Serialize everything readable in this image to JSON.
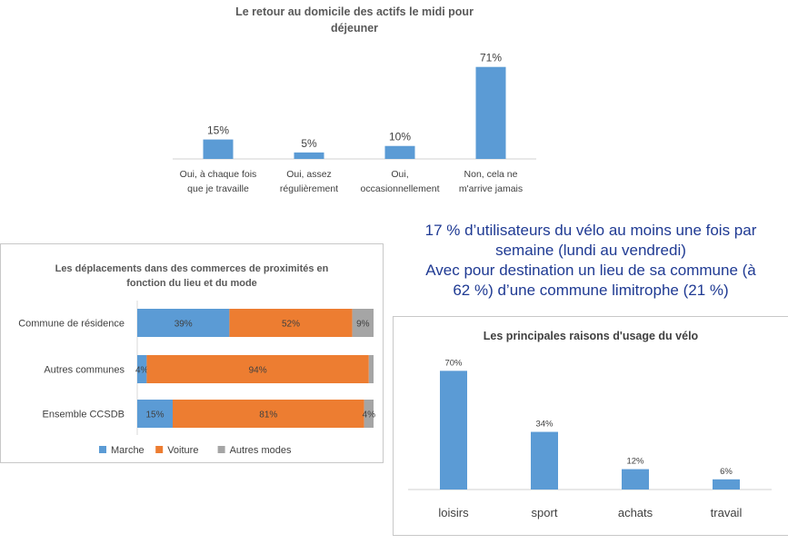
{
  "note": {
    "line1": "17 % d’utilisateurs du vélo au moins une fois par",
    "line2": "semaine (lundi au vendredi)",
    "line3": "Avec pour destination un lieu de sa commune (à",
    "line4": "62 %) d’une commune limitrophe (21 %)"
  },
  "colors": {
    "blue": "#5b9bd5",
    "orange": "#ed7d31",
    "gray": "#a5a5a5",
    "note_text": "#1f3a93"
  },
  "chart_data": [
    {
      "type": "bar",
      "title": "Le retour au domicile des actifs le midi pour déjeuner",
      "title_lines": [
        "Le retour au domicile des actifs le midi pour",
        "déjeuner"
      ],
      "categories": [
        "Oui, à chaque fois que je travaille",
        "Oui, assez régulièrement",
        "Oui, occasionnellement",
        "Non, cela ne m'arrive jamais"
      ],
      "category_lines": [
        [
          "Oui, à chaque fois",
          "que je travaille"
        ],
        [
          "Oui, assez",
          "régulièrement"
        ],
        [
          "Oui,",
          "occasionnellement"
        ],
        [
          "Non, cela ne",
          "m'arrive jamais"
        ]
      ],
      "values": [
        15,
        5,
        10,
        71
      ],
      "labels": [
        "15%",
        "5%",
        "10%",
        "71%"
      ],
      "ylim": [
        0,
        75
      ],
      "xlabel": "",
      "ylabel": ""
    },
    {
      "type": "bar",
      "orientation": "horizontal-stacked",
      "title": "Les déplacements dans des commerces de proximités en fonction du lieu et du mode",
      "title_lines": [
        "Les déplacements dans des commerces de proximités en",
        "fonction du lieu et du mode"
      ],
      "categories": [
        "Commune de résidence",
        "Autres communes",
        "Ensemble CCSDB"
      ],
      "series": [
        {
          "name": "Marche",
          "values": [
            39,
            4,
            15
          ],
          "labels": [
            "39%",
            "4%",
            "15%"
          ]
        },
        {
          "name": "Voiture",
          "values": [
            52,
            94,
            81
          ],
          "labels": [
            "52%",
            "94%",
            "81%"
          ]
        },
        {
          "name": "Autres modes",
          "values": [
            9,
            2,
            4
          ],
          "labels": [
            "9%",
            "",
            "4%"
          ]
        }
      ],
      "xlim": [
        0,
        100
      ],
      "legend": "bottom"
    },
    {
      "type": "bar",
      "title": "Les principales raisons d'usage du vélo",
      "categories": [
        "loisirs",
        "sport",
        "achats",
        "travail"
      ],
      "values": [
        70,
        34,
        12,
        6
      ],
      "labels": [
        "70%",
        "34%",
        "12%",
        "6%"
      ],
      "ylim": [
        0,
        75
      ]
    }
  ]
}
